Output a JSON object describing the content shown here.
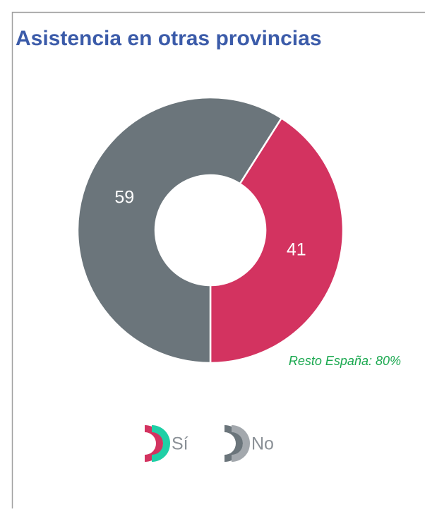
{
  "chart_data": {
    "type": "pie",
    "title": "Asistencia en otras provincias",
    "categories": [
      "Sí",
      "No"
    ],
    "values": [
      41,
      59
    ],
    "colors": [
      "#d33360",
      "#6b757b"
    ],
    "annotation": "Resto España: 80%"
  }
}
